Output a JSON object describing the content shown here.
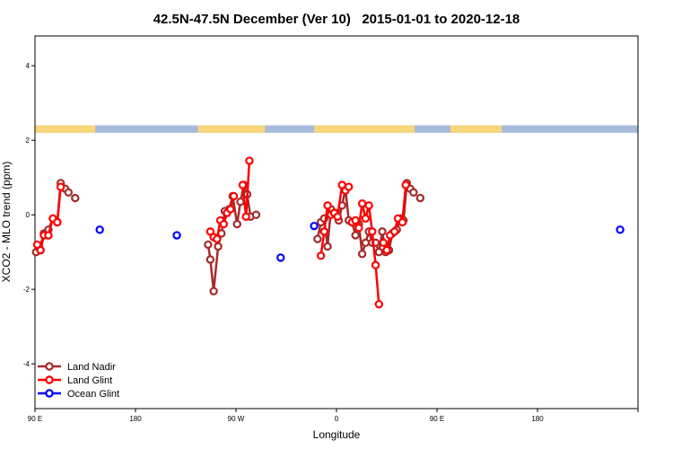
{
  "chart_data": {
    "type": "line",
    "title": "42.5N-47.5N December (Ver 10)   2015-01-01 to 2020-12-18",
    "xlabel": "Longitude",
    "ylabel": "XCO2 - MLO trend (ppm)",
    "xlim": [
      -90,
      180
    ],
    "ylim": [
      -5.2,
      4.8
    ],
    "x_ticks": [
      {
        "value": -90,
        "label": "90 E"
      },
      {
        "value": -45,
        "label": "180"
      },
      {
        "value": 0,
        "label": "90 W"
      },
      {
        "value": 45,
        "label": "0"
      },
      {
        "value": 90,
        "label": "90 E"
      },
      {
        "value": 135,
        "label": "180"
      }
    ],
    "y_ticks": [
      -4,
      -2,
      0,
      2,
      4
    ],
    "land_mask_band": {
      "y_range": [
        2.2,
        2.4
      ],
      "land_color": "#f8d77b",
      "ocean_color": "#a7bbdc",
      "land_segments": [
        [
          -90,
          -63
        ],
        [
          -17,
          13
        ],
        [
          35,
          80
        ],
        [
          96,
          119
        ]
      ]
    },
    "series": [
      {
        "name": "Land Nadir",
        "color": "#a52a2a",
        "segments": [
          [
            [
              -89.5,
              -1.0
            ],
            [
              -88,
              -0.9
            ],
            [
              -86,
              -0.5
            ],
            [
              -84,
              -0.4
            ],
            [
              -82,
              -0.1
            ],
            [
              -80,
              -0.2
            ],
            [
              -78.5,
              0.85
            ],
            [
              -76.5,
              0.7
            ],
            [
              -75,
              0.6
            ]
          ],
          [
            [
              -72,
              0.45
            ]
          ],
          [
            [
              -12.5,
              -0.8
            ],
            [
              -11.5,
              -1.2
            ],
            [
              -10,
              -2.05
            ],
            [
              -8,
              -0.85
            ],
            [
              -6.5,
              -0.5
            ],
            [
              -5,
              0.1
            ],
            [
              -3,
              0.15
            ],
            [
              -1.5,
              0.5
            ],
            [
              0.5,
              -0.25
            ],
            [
              2,
              0.35
            ],
            [
              3.5,
              0.8
            ],
            [
              5,
              0.55
            ],
            [
              6.5,
              -0.05
            ]
          ],
          [
            [
              9,
              0.0
            ]
          ],
          [
            [
              36.5,
              -0.65
            ],
            [
              38,
              -0.2
            ],
            [
              39.5,
              -0.1
            ],
            [
              41,
              -0.85
            ],
            [
              42.5,
              0.15
            ],
            [
              44.5,
              0.05
            ],
            [
              46,
              -0.15
            ],
            [
              47.5,
              0.25
            ],
            [
              49,
              0.7
            ],
            [
              50.5,
              -0.15
            ],
            [
              52,
              -0.2
            ],
            [
              53.5,
              -0.55
            ],
            [
              55,
              -0.25
            ],
            [
              56.5,
              -1.05
            ],
            [
              58,
              -0.75
            ],
            [
              59.5,
              -0.45
            ],
            [
              61,
              -0.75
            ],
            [
              62.5,
              -0.75
            ],
            [
              64,
              -1.0
            ],
            [
              65.5,
              -0.45
            ],
            [
              67,
              -1.0
            ],
            [
              68.5,
              -0.95
            ],
            [
              70,
              -0.5
            ],
            [
              72,
              -0.4
            ],
            [
              73.5,
              -0.1
            ],
            [
              75,
              -0.15
            ],
            [
              76.5,
              0.85
            ],
            [
              78,
              0.7
            ],
            [
              79.5,
              0.6
            ]
          ],
          [
            [
              82.5,
              0.45
            ]
          ]
        ]
      },
      {
        "name": "Land Glint",
        "color": "#ff0000",
        "segments": [
          [
            [
              -89,
              -0.8
            ],
            [
              -87.5,
              -0.95
            ],
            [
              -86,
              -0.55
            ],
            [
              -84,
              -0.55
            ],
            [
              -82,
              -0.1
            ],
            [
              -80,
              -0.2
            ],
            [
              -78.5,
              0.75
            ]
          ],
          [
            [
              -11.5,
              -0.45
            ],
            [
              -10,
              -0.6
            ],
            [
              -8.5,
              -0.65
            ],
            [
              -7,
              -0.15
            ],
            [
              -5.5,
              -0.25
            ],
            [
              -4,
              0.05
            ],
            [
              -2.5,
              0.15
            ],
            [
              -1,
              0.5
            ]
          ],
          [
            [
              3,
              0.8
            ],
            [
              4.5,
              -0.05
            ],
            [
              6,
              1.45
            ]
          ],
          [
            [
              38,
              -1.1
            ],
            [
              39.5,
              -0.45
            ],
            [
              41,
              0.25
            ],
            [
              42.5,
              0.0
            ],
            [
              44,
              0.05
            ],
            [
              45.5,
              -0.05
            ],
            [
              47.5,
              0.8
            ],
            [
              49,
              0.65
            ],
            [
              50.5,
              0.75
            ]
          ],
          [
            [
              52,
              -0.2
            ],
            [
              53.5,
              -0.15
            ],
            [
              55,
              -0.35
            ],
            [
              56.5,
              0.3
            ],
            [
              58,
              -0.1
            ],
            [
              59.5,
              0.25
            ],
            [
              61,
              -0.45
            ],
            [
              62.5,
              -1.35
            ],
            [
              64,
              -2.4
            ]
          ],
          [
            [
              66,
              -0.75
            ],
            [
              67.5,
              -0.95
            ],
            [
              69,
              -0.55
            ],
            [
              71,
              -0.45
            ],
            [
              72.5,
              -0.1
            ],
            [
              74.5,
              -0.2
            ],
            [
              76,
              0.8
            ]
          ]
        ]
      },
      {
        "name": "Ocean Glint",
        "color": "#0000ff",
        "segments": [
          [
            [
              -61,
              -0.4
            ]
          ],
          [
            [
              -26.5,
              -0.55
            ]
          ],
          [
            [
              20,
              -1.15
            ]
          ],
          [
            [
              35,
              -0.3
            ]
          ],
          [
            [
              172,
              -0.4
            ]
          ]
        ]
      }
    ],
    "legend": {
      "position": "bottom-left",
      "entries": [
        "Land Nadir",
        "Land Glint",
        "Ocean Glint"
      ]
    }
  }
}
